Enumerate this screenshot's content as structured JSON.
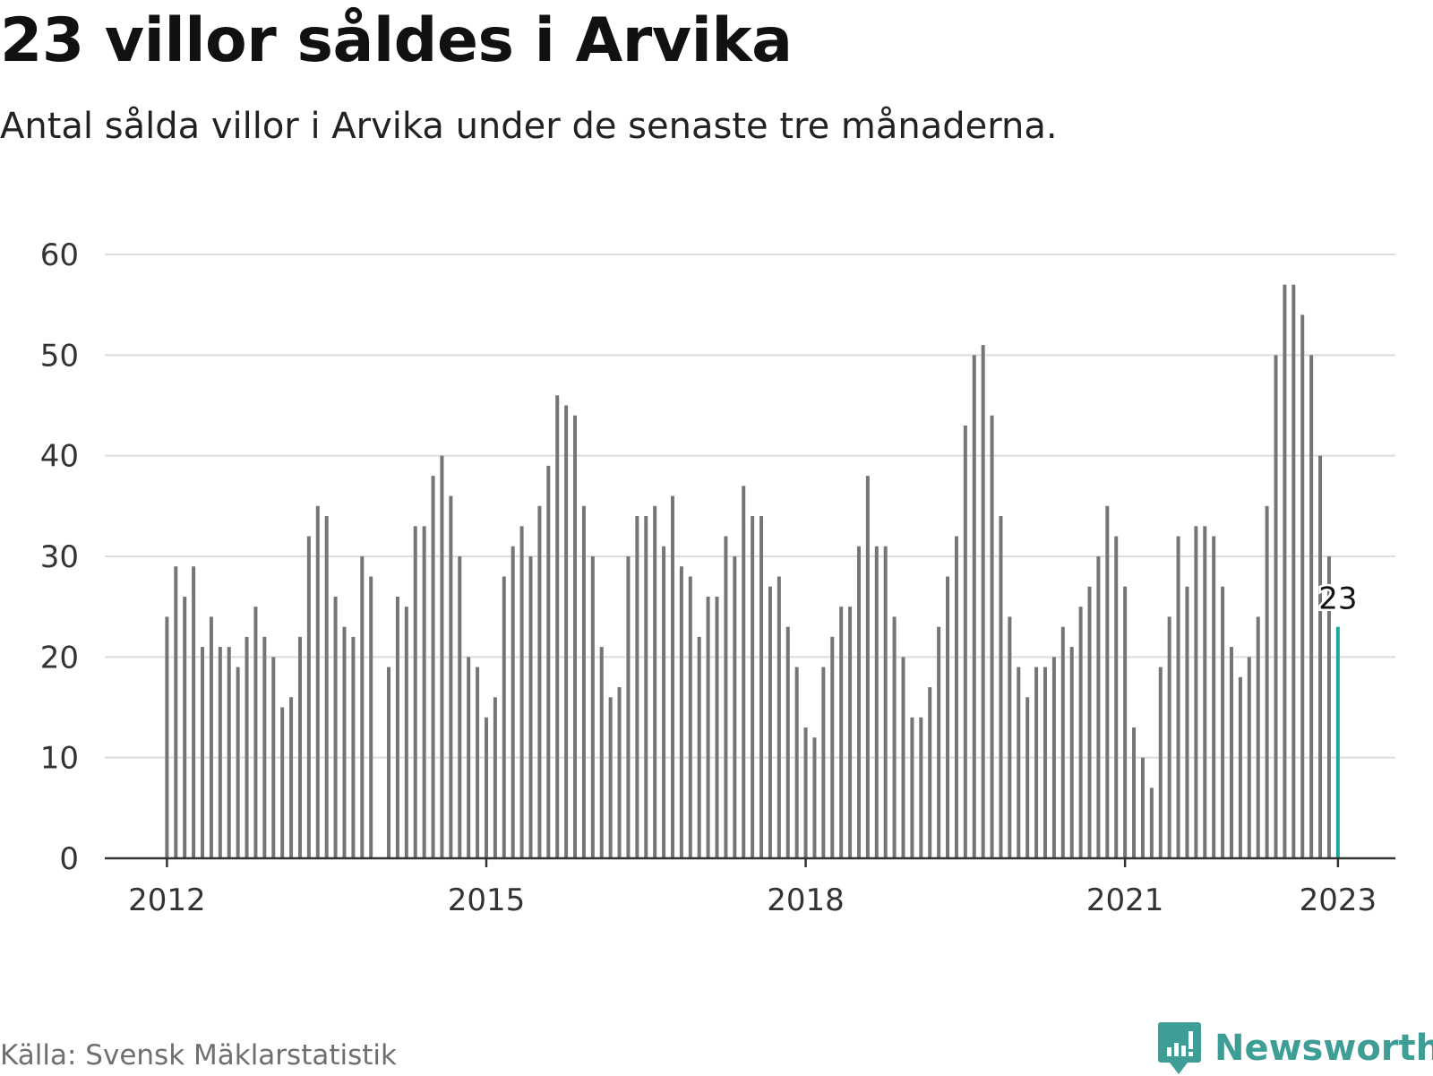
{
  "header": {
    "title": "23 villor såldes i Arvika",
    "subtitle": "Antal sålda villor i Arvika under de senaste tre månaderna."
  },
  "footer": {
    "source": "Källa: Svensk Mäklarstatistik",
    "brand": "Newsworthy"
  },
  "colors": {
    "bar": "#757579",
    "highlight": "#1aa899",
    "grid": "#dddddd",
    "axis": "#333333",
    "brand": "#3e9e95"
  },
  "chart_data": {
    "type": "bar",
    "x_start": "2012-01",
    "x_end": "2023-01",
    "values": [
      24,
      29,
      26,
      29,
      21,
      24,
      21,
      21,
      19,
      22,
      25,
      22,
      20,
      15,
      16,
      22,
      32,
      35,
      34,
      26,
      23,
      22,
      30,
      28,
      null,
      19,
      26,
      25,
      33,
      33,
      38,
      40,
      36,
      30,
      20,
      19,
      14,
      16,
      28,
      31,
      33,
      30,
      35,
      39,
      46,
      45,
      44,
      35,
      30,
      21,
      16,
      17,
      30,
      34,
      34,
      35,
      31,
      36,
      29,
      28,
      22,
      26,
      26,
      32,
      30,
      37,
      34,
      34,
      27,
      28,
      23,
      19,
      13,
      12,
      19,
      22,
      25,
      25,
      31,
      38,
      31,
      31,
      24,
      20,
      14,
      14,
      17,
      23,
      28,
      32,
      43,
      50,
      51,
      44,
      34,
      24,
      19,
      16,
      19,
      19,
      20,
      23,
      21,
      25,
      27,
      30,
      35,
      32,
      27,
      13,
      10,
      7,
      19,
      24,
      32,
      27,
      33,
      33,
      32,
      27,
      21,
      18,
      20,
      24,
      35,
      50,
      57,
      57,
      54,
      50,
      40,
      30,
      23
    ],
    "ylim": [
      0,
      60
    ],
    "yticks": [
      0,
      10,
      20,
      30,
      40,
      50,
      60
    ],
    "xticks": [
      {
        "label": "2012",
        "date": "2012-01"
      },
      {
        "label": "2015",
        "date": "2015-01"
      },
      {
        "label": "2018",
        "date": "2018-01"
      },
      {
        "label": "2021",
        "date": "2021-01"
      },
      {
        "label": "2023",
        "date": "2023-01"
      }
    ],
    "highlight_last": true,
    "last_value_label": "23",
    "grid": true
  }
}
